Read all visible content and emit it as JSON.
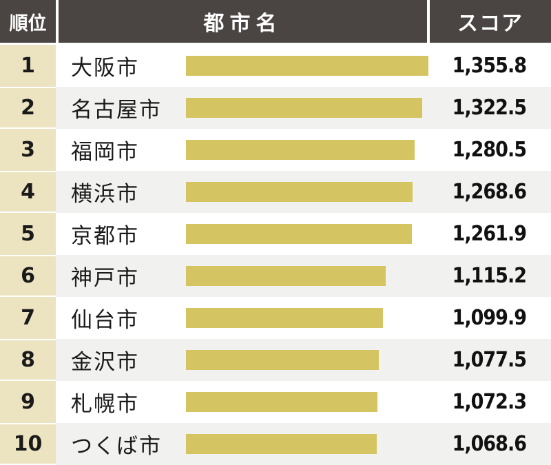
{
  "header": {
    "rank": "順位",
    "city": "都市名",
    "score": "スコア"
  },
  "colors": {
    "header_bg": "#4a4442",
    "rank_bg": "#ece3c0",
    "bar": "#d5c462",
    "row_alt": "#f1f2f0"
  },
  "chart_data": {
    "type": "bar",
    "orientation": "horizontal",
    "categories": [
      "大阪市",
      "名古屋市",
      "福岡市",
      "横浜市",
      "京都市",
      "神戸市",
      "仙台市",
      "金沢市",
      "札幌市",
      "つくば市"
    ],
    "ranks": [
      "1",
      "2",
      "3",
      "4",
      "5",
      "6",
      "7",
      "8",
      "9",
      "10"
    ],
    "values": [
      1355.8,
      1322.5,
      1280.5,
      1268.6,
      1261.9,
      1115.2,
      1099.9,
      1077.5,
      1072.3,
      1068.6
    ],
    "labels": [
      "1,355.8",
      "1,322.5",
      "1,280.5",
      "1,268.6",
      "1,261.9",
      "1,115.2",
      "1,099.9",
      "1,077.5",
      "1,072.3",
      "1,068.6"
    ],
    "xlim": [
      0,
      1355.8
    ]
  }
}
